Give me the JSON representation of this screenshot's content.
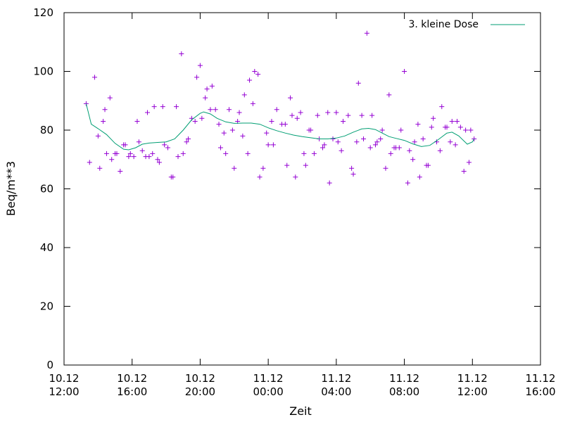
{
  "chart_data": {
    "type": "scatter",
    "xlabel": "Zeit",
    "ylabel": "Beq/m**3",
    "ylim": [
      0,
      120
    ],
    "xlim_hours": [
      0,
      28
    ],
    "yticks": [
      0,
      20,
      40,
      60,
      80,
      100,
      120
    ],
    "xticks": [
      {
        "h": 0,
        "line1": "10.12",
        "line2": "12:00"
      },
      {
        "h": 4,
        "line1": "10.12",
        "line2": "16:00"
      },
      {
        "h": 8,
        "line1": "10.12",
        "line2": "20:00"
      },
      {
        "h": 12,
        "line1": "11.12",
        "line2": "00:00"
      },
      {
        "h": 16,
        "line1": "11.12",
        "line2": "04:00"
      },
      {
        "h": 20,
        "line1": "11.12",
        "line2": "08:00"
      },
      {
        "h": 24,
        "line1": "11.12",
        "line2": "12:00"
      },
      {
        "h": 28,
        "line1": "11.12",
        "line2": "16:00"
      }
    ],
    "legend": {
      "label": "3. kleine Dose",
      "position": "top-right"
    },
    "colors": {
      "points": "#9400d3",
      "line": "#009e73"
    },
    "points": [
      [
        1.3,
        89
      ],
      [
        1.5,
        69
      ],
      [
        1.8,
        98
      ],
      [
        2.0,
        78
      ],
      [
        2.1,
        67
      ],
      [
        2.3,
        83
      ],
      [
        2.4,
        87
      ],
      [
        2.5,
        72
      ],
      [
        2.7,
        91
      ],
      [
        2.8,
        70
      ],
      [
        3.0,
        72
      ],
      [
        3.1,
        72
      ],
      [
        3.3,
        66
      ],
      [
        3.5,
        75
      ],
      [
        3.6,
        75
      ],
      [
        3.8,
        71
      ],
      [
        3.9,
        72
      ],
      [
        4.1,
        71
      ],
      [
        4.3,
        83
      ],
      [
        4.4,
        76
      ],
      [
        4.6,
        73
      ],
      [
        4.8,
        71
      ],
      [
        4.9,
        86
      ],
      [
        5.0,
        71
      ],
      [
        5.2,
        72
      ],
      [
        5.3,
        88
      ],
      [
        5.5,
        70
      ],
      [
        5.6,
        69
      ],
      [
        5.8,
        88
      ],
      [
        5.9,
        75
      ],
      [
        6.1,
        74
      ],
      [
        6.3,
        64
      ],
      [
        6.4,
        64
      ],
      [
        6.6,
        88
      ],
      [
        6.7,
        71
      ],
      [
        6.9,
        106
      ],
      [
        7.0,
        72
      ],
      [
        7.2,
        76
      ],
      [
        7.3,
        77
      ],
      [
        7.5,
        84
      ],
      [
        7.7,
        83
      ],
      [
        7.8,
        98
      ],
      [
        8.0,
        102
      ],
      [
        8.1,
        84
      ],
      [
        8.3,
        91
      ],
      [
        8.4,
        94
      ],
      [
        8.6,
        87
      ],
      [
        8.7,
        95
      ],
      [
        8.9,
        87
      ],
      [
        9.1,
        82
      ],
      [
        9.2,
        74
      ],
      [
        9.4,
        79
      ],
      [
        9.5,
        72
      ],
      [
        9.7,
        87
      ],
      [
        9.9,
        80
      ],
      [
        10.0,
        67
      ],
      [
        10.2,
        83
      ],
      [
        10.3,
        86
      ],
      [
        10.5,
        78
      ],
      [
        10.6,
        92
      ],
      [
        10.8,
        72
      ],
      [
        10.9,
        97
      ],
      [
        11.1,
        89
      ],
      [
        11.2,
        100
      ],
      [
        11.4,
        99
      ],
      [
        11.5,
        64
      ],
      [
        11.7,
        67
      ],
      [
        11.9,
        79
      ],
      [
        12.0,
        75
      ],
      [
        12.2,
        83
      ],
      [
        12.3,
        75
      ],
      [
        12.5,
        87
      ],
      [
        12.8,
        82
      ],
      [
        13.0,
        82
      ],
      [
        13.1,
        68
      ],
      [
        13.3,
        91
      ],
      [
        13.4,
        85
      ],
      [
        13.6,
        64
      ],
      [
        13.7,
        84
      ],
      [
        13.9,
        86
      ],
      [
        14.1,
        72
      ],
      [
        14.2,
        68
      ],
      [
        14.4,
        80
      ],
      [
        14.5,
        80
      ],
      [
        14.7,
        72
      ],
      [
        14.9,
        85
      ],
      [
        15.0,
        77
      ],
      [
        15.2,
        74
      ],
      [
        15.3,
        75
      ],
      [
        15.5,
        86
      ],
      [
        15.6,
        62
      ],
      [
        15.8,
        77
      ],
      [
        16.0,
        86
      ],
      [
        16.1,
        76
      ],
      [
        16.3,
        73
      ],
      [
        16.4,
        83
      ],
      [
        16.7,
        85
      ],
      [
        16.9,
        67
      ],
      [
        17.0,
        65
      ],
      [
        17.2,
        76
      ],
      [
        17.3,
        96
      ],
      [
        17.5,
        85
      ],
      [
        17.6,
        77
      ],
      [
        17.8,
        113
      ],
      [
        18.0,
        74
      ],
      [
        18.1,
        85
      ],
      [
        18.3,
        75
      ],
      [
        18.4,
        76
      ],
      [
        18.6,
        77
      ],
      [
        18.7,
        80
      ],
      [
        18.9,
        67
      ],
      [
        19.1,
        92
      ],
      [
        19.2,
        72
      ],
      [
        19.4,
        74
      ],
      [
        19.5,
        74
      ],
      [
        19.7,
        74
      ],
      [
        19.8,
        80
      ],
      [
        20.0,
        100
      ],
      [
        20.2,
        62
      ],
      [
        20.3,
        73
      ],
      [
        20.5,
        70
      ],
      [
        20.6,
        76
      ],
      [
        20.8,
        82
      ],
      [
        20.9,
        64
      ],
      [
        21.1,
        77
      ],
      [
        21.3,
        68
      ],
      [
        21.4,
        68
      ],
      [
        21.6,
        81
      ],
      [
        21.7,
        84
      ],
      [
        21.9,
        76
      ],
      [
        22.1,
        73
      ],
      [
        22.2,
        88
      ],
      [
        22.4,
        81
      ],
      [
        22.5,
        81
      ],
      [
        22.7,
        76
      ],
      [
        22.8,
        83
      ],
      [
        23.0,
        75
      ],
      [
        23.1,
        83
      ],
      [
        23.3,
        81
      ],
      [
        23.5,
        66
      ],
      [
        23.6,
        80
      ],
      [
        23.8,
        69
      ],
      [
        23.9,
        80
      ],
      [
        24.1,
        77
      ]
    ],
    "smooth_line": [
      [
        1.3,
        89
      ],
      [
        1.6,
        82
      ],
      [
        2.0,
        80.5
      ],
      [
        2.5,
        78.5
      ],
      [
        3.0,
        75.5
      ],
      [
        3.5,
        73.5
      ],
      [
        3.8,
        73.3
      ],
      [
        4.2,
        74
      ],
      [
        4.6,
        75.2
      ],
      [
        5.0,
        75.6
      ],
      [
        5.5,
        75.8
      ],
      [
        6.0,
        76
      ],
      [
        6.5,
        77
      ],
      [
        7.0,
        80
      ],
      [
        7.5,
        83.5
      ],
      [
        8.0,
        85.7
      ],
      [
        8.2,
        86.2
      ],
      [
        8.6,
        85.5
      ],
      [
        9.0,
        84
      ],
      [
        9.5,
        82.8
      ],
      [
        10.0,
        82.3
      ],
      [
        10.5,
        82.4
      ],
      [
        11.0,
        82.4
      ],
      [
        11.5,
        82
      ],
      [
        12.0,
        80.8
      ],
      [
        12.5,
        79.8
      ],
      [
        13.0,
        79
      ],
      [
        13.5,
        78.3
      ],
      [
        14.0,
        77.8
      ],
      [
        14.5,
        77.4
      ],
      [
        15.0,
        77
      ],
      [
        15.5,
        77
      ],
      [
        16.0,
        77.3
      ],
      [
        16.5,
        78
      ],
      [
        17.0,
        79.3
      ],
      [
        17.5,
        80.4
      ],
      [
        17.9,
        80.6
      ],
      [
        18.3,
        80.2
      ],
      [
        18.7,
        79
      ],
      [
        19.1,
        77.8
      ],
      [
        19.5,
        77.2
      ],
      [
        20.0,
        76.5
      ],
      [
        20.5,
        75.3
      ],
      [
        21.0,
        74.4
      ],
      [
        21.5,
        74.8
      ],
      [
        22.0,
        76.8
      ],
      [
        22.5,
        79
      ],
      [
        22.8,
        79.3
      ],
      [
        23.2,
        78
      ],
      [
        23.5,
        76.3
      ],
      [
        23.7,
        75.2
      ],
      [
        24.0,
        76
      ],
      [
        24.1,
        77
      ]
    ]
  }
}
